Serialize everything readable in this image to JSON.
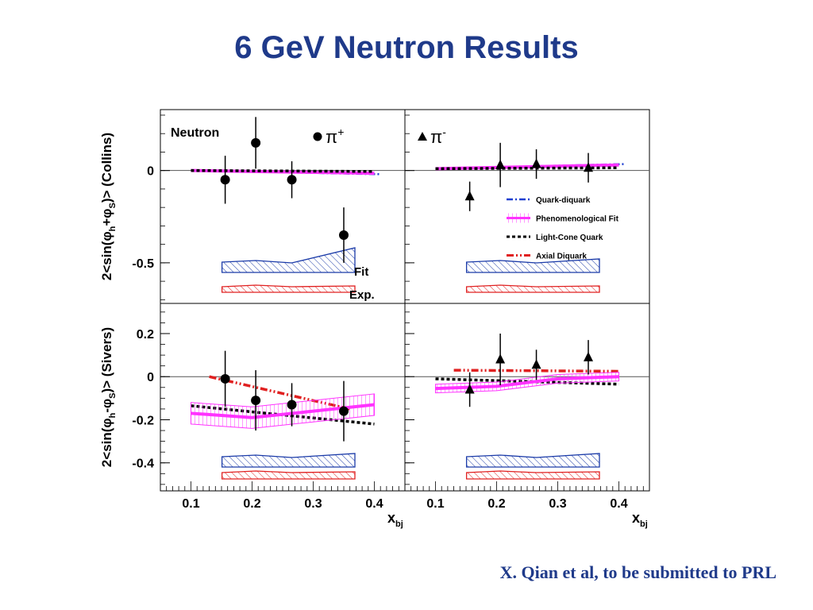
{
  "slide": {
    "title": "6 GeV Neutron Results",
    "citation": "X. Qian et al, to be submitted to PRL"
  },
  "colors": {
    "title": "#1f3a8a",
    "data": "#000000",
    "quark_diquark": "#1e3fd0",
    "phenomenological_fit": "#ff33ff",
    "light_cone_quark": "#000000",
    "axial_diquark": "#e02020",
    "fit_band": "#1a3aa8",
    "exp_band": "#e02020"
  },
  "chart_data": {
    "type": "scatter",
    "target_label": "Neutron",
    "xlabel": "x",
    "xlabel_sub": "bj",
    "x_ticks": [
      "0.1",
      "0.2",
      "0.3",
      "0.4"
    ],
    "xlim": [
      0.05,
      0.45
    ],
    "legend": {
      "placement": "right",
      "entries": [
        "Quark-diquark",
        "Phenomenological Fit",
        "Light-Cone Quark",
        "Axial Diquark"
      ]
    },
    "band_labels": {
      "fit": "Fit",
      "exp": "Exp."
    },
    "rows": [
      {
        "key": "collins",
        "ylabel": "2<sin(φh+φS)> (Collins)",
        "ylim": [
          -0.72,
          0.33
        ],
        "y_ticks": [
          0,
          -0.5
        ],
        "y_tick_labels": [
          "0",
          "-0.5"
        ]
      },
      {
        "key": "sivers",
        "ylabel": "2<sin(φh-φS)> (Sivers)",
        "ylim": [
          -0.53,
          0.34
        ],
        "y_ticks": [
          0.2,
          0,
          -0.2,
          -0.4
        ],
        "y_tick_labels": [
          "0.2",
          "0",
          "-0.2",
          "-0.4"
        ]
      }
    ],
    "panels": [
      {
        "row": "collins",
        "col": "pi_plus",
        "species_label": "π+",
        "marker": "circle",
        "points": [
          {
            "x": 0.156,
            "y": -0.05,
            "err": 0.13
          },
          {
            "x": 0.206,
            "y": 0.15,
            "err": 0.14
          },
          {
            "x": 0.265,
            "y": -0.05,
            "err": 0.1
          },
          {
            "x": 0.35,
            "y": -0.35,
            "err": 0.15
          }
        ],
        "curves": [
          {
            "name": "Quark-diquark",
            "x": [
              0.1,
              0.41
            ],
            "y": [
              0.0,
              -0.02
            ]
          },
          {
            "name": "Phenomenological Fit",
            "x": [
              0.1,
              0.4
            ],
            "y": [
              0.0,
              -0.015
            ]
          },
          {
            "name": "Light-Cone Quark",
            "x": [
              0.1,
              0.4
            ],
            "y": [
              0.0,
              -0.005
            ]
          }
        ]
      },
      {
        "row": "collins",
        "col": "pi_minus",
        "species_label": "π-",
        "marker": "triangle",
        "points": [
          {
            "x": 0.156,
            "y": -0.14,
            "err": 0.08
          },
          {
            "x": 0.206,
            "y": 0.03,
            "err": 0.12
          },
          {
            "x": 0.265,
            "y": 0.035,
            "err": 0.08
          },
          {
            "x": 0.35,
            "y": 0.015,
            "err": 0.08
          }
        ],
        "curves": [
          {
            "name": "Quark-diquark",
            "x": [
              0.1,
              0.41
            ],
            "y": [
              0.01,
              0.035
            ]
          },
          {
            "name": "Phenomenological Fit",
            "x": [
              0.1,
              0.4
            ],
            "y": [
              0.01,
              0.03
            ]
          },
          {
            "name": "Light-Cone Quark",
            "x": [
              0.1,
              0.4
            ],
            "y": [
              0.01,
              0.015
            ]
          }
        ]
      },
      {
        "row": "sivers",
        "col": "pi_plus",
        "species_label": "",
        "marker": "circle",
        "points": [
          {
            "x": 0.156,
            "y": -0.01,
            "err": 0.13
          },
          {
            "x": 0.206,
            "y": -0.11,
            "err": 0.14
          },
          {
            "x": 0.265,
            "y": -0.13,
            "err": 0.1
          },
          {
            "x": 0.35,
            "y": -0.16,
            "err": 0.14
          }
        ],
        "curves": [
          {
            "name": "Light-Cone Quark",
            "x": [
              0.1,
              0.4
            ],
            "y": [
              -0.135,
              -0.22
            ]
          },
          {
            "name": "Axial Diquark",
            "x": [
              0.13,
              0.36
            ],
            "y": [
              0.0,
              -0.15
            ]
          },
          {
            "name": "Phenomenological Fit",
            "x": [
              0.1,
              0.2,
              0.3,
              0.4
            ],
            "y": [
              -0.17,
              -0.19,
              -0.16,
              -0.13
            ],
            "band": 0.05
          }
        ]
      },
      {
        "row": "sivers",
        "col": "pi_minus",
        "species_label": "",
        "marker": "triangle",
        "points": [
          {
            "x": 0.156,
            "y": -0.06,
            "err": 0.08
          },
          {
            "x": 0.206,
            "y": 0.08,
            "err": 0.12
          },
          {
            "x": 0.265,
            "y": 0.055,
            "err": 0.07
          },
          {
            "x": 0.35,
            "y": 0.09,
            "err": 0.08
          }
        ],
        "curves": [
          {
            "name": "Light-Cone Quark",
            "x": [
              0.1,
              0.4
            ],
            "y": [
              -0.01,
              -0.035
            ]
          },
          {
            "name": "Axial Diquark",
            "x": [
              0.13,
              0.4
            ],
            "y": [
              0.03,
              0.025
            ]
          },
          {
            "name": "Phenomenological Fit",
            "x": [
              0.1,
              0.2,
              0.3,
              0.4
            ],
            "y": [
              -0.055,
              -0.045,
              -0.01,
              0.0
            ],
            "band": 0.02
          }
        ]
      }
    ]
  }
}
